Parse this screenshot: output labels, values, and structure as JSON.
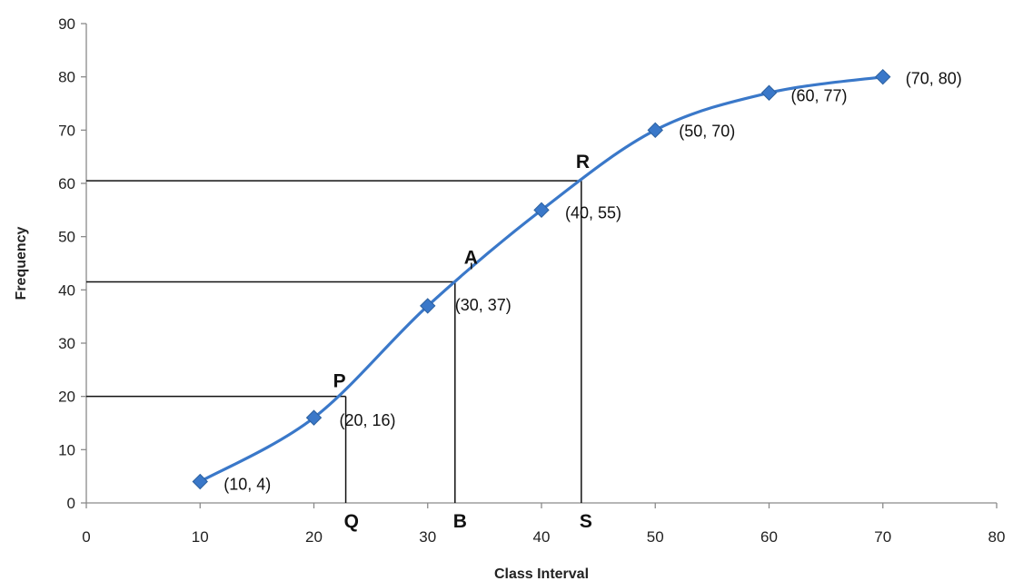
{
  "chart_data": {
    "type": "line",
    "xlabel": "Class Interval",
    "ylabel": "Frequency",
    "xlim": [
      0,
      80
    ],
    "ylim": [
      0,
      90
    ],
    "x_ticks": [
      0,
      10,
      20,
      30,
      40,
      50,
      60,
      70,
      80
    ],
    "y_ticks": [
      0,
      10,
      20,
      30,
      40,
      50,
      60,
      70,
      80,
      90
    ],
    "grid": false,
    "series_color": "#3A78C9",
    "series": [
      {
        "points": [
          {
            "x": 10,
            "y": 4,
            "label": "(10, 4)"
          },
          {
            "x": 20,
            "y": 16,
            "label": "(20, 16)"
          },
          {
            "x": 30,
            "y": 37,
            "label": "(30, 37)"
          },
          {
            "x": 40,
            "y": 55,
            "label": "(40, 55)"
          },
          {
            "x": 50,
            "y": 70,
            "label": "(50, 70)"
          },
          {
            "x": 60,
            "y": 77,
            "label": "(60, 77)"
          },
          {
            "x": 70,
            "y": 80,
            "label": "(70, 80)"
          }
        ]
      }
    ],
    "reference_points": [
      {
        "name": "P",
        "x": 22.8,
        "y": 20,
        "foot": "Q"
      },
      {
        "name": "A",
        "x": 32.4,
        "y": 41.5,
        "foot": "B"
      },
      {
        "name": "R",
        "x": 43.5,
        "y": 60.5,
        "foot": "S"
      }
    ]
  }
}
